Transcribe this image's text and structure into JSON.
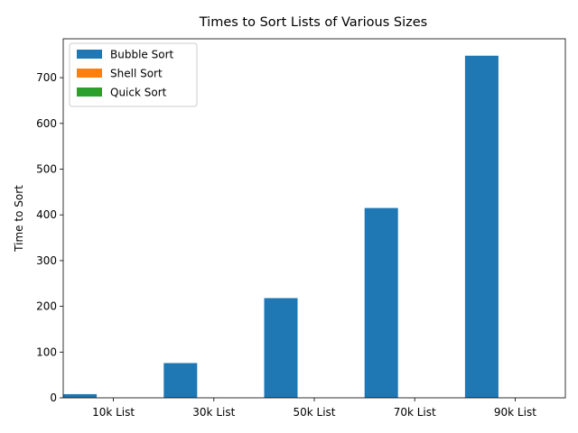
{
  "chart_data": {
    "type": "bar",
    "title": "Times to Sort Lists of Various Sizes",
    "xlabel": "",
    "ylabel": "Time to Sort",
    "categories": [
      "10k List",
      "30k List",
      "50k List",
      "70k List",
      "90k List"
    ],
    "series": [
      {
        "name": "Bubble Sort",
        "color": "#1f77b4",
        "values": [
          8,
          76,
          218,
          415,
          748
        ]
      },
      {
        "name": "Shell Sort",
        "color": "#ff7f0e",
        "values": [
          0.01,
          0.05,
          0.09,
          0.13,
          0.18
        ]
      },
      {
        "name": "Quick Sort",
        "color": "#2ca02c",
        "values": [
          0.01,
          0.03,
          0.05,
          0.07,
          0.09
        ]
      }
    ],
    "ylim": [
      0,
      785
    ],
    "yticks": [
      0,
      100,
      200,
      300,
      400,
      500,
      600,
      700
    ],
    "grid": false,
    "legend": "top-left"
  }
}
